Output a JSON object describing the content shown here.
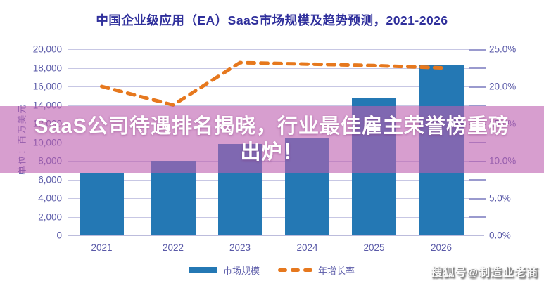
{
  "title": "中国企业级应用（EA）SaaS市场规模及趋势预测，2021-2026",
  "overlay": {
    "line1": "SaaS公司待遇排名揭晓，行业最佳雇主荣誉榜重磅",
    "line2": "出炉！"
  },
  "watermark": "搜狐号@制造业老商",
  "legend": {
    "bar_label": "市场规模",
    "line_label": "年增长率"
  },
  "colors": {
    "bar": "#2478b4",
    "line": "#e6781e",
    "axis_text": "#5a5aa8",
    "title_text": "#30309c",
    "gridline": "#c7c7e4",
    "overlay_band": "rgba(188,94,175,0.60)"
  },
  "chart_data": {
    "type": "bar",
    "title": "中国企业级应用（EA）SaaS市场规模及趋势预测，2021-2026",
    "categories": [
      "2021",
      "2022",
      "2023",
      "2024",
      "2025",
      "2026"
    ],
    "series": [
      {
        "name": "市场规模",
        "type": "bar",
        "axis": "left",
        "unit": "百万美元",
        "color": "#2478b4",
        "values": [
          6700,
          8000,
          9800,
          10400,
          14700,
          18300
        ]
      },
      {
        "name": "年增长率",
        "type": "line",
        "style": "dashed",
        "axis": "right",
        "unit": "%",
        "color": "#e6781e",
        "values": [
          20.0,
          17.5,
          23.2,
          23.0,
          22.8,
          22.5
        ]
      }
    ],
    "left_axis": {
      "label": "单位：百万美元",
      "min": 0,
      "max": 20000,
      "tick_step": 2000,
      "tick_values": [
        0,
        2000,
        4000,
        6000,
        8000,
        10000,
        12000,
        14000,
        16000,
        18000,
        20000
      ],
      "tick_labels": [
        "0",
        "2,000",
        "4,000",
        "6,000",
        "8,000",
        "10,000",
        "12,000",
        "14,000",
        "16,000",
        "18,000",
        "20,000"
      ]
    },
    "right_axis": {
      "min": 0,
      "max": 25,
      "tick_step": 5,
      "tick_values": [
        0,
        5,
        10,
        15,
        20,
        25
      ],
      "tick_labels": [
        "0.0%",
        "5.0%",
        "10.0%",
        "15.0%",
        "20.0%",
        "25.0%"
      ]
    },
    "grid": true,
    "legend_position": "bottom"
  }
}
